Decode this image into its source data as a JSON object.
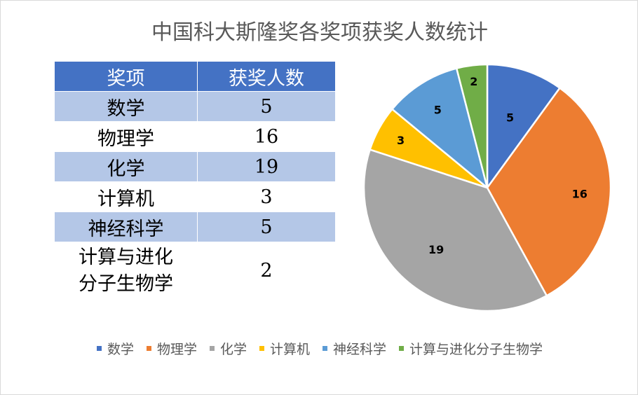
{
  "title": "中国科大斯隆奖各奖项获奖人数统计",
  "table": {
    "headers": [
      "奖项",
      "获奖人数"
    ],
    "rows": [
      {
        "name": "数学",
        "count": "5"
      },
      {
        "name": "物理学",
        "count": "16"
      },
      {
        "name": "化学",
        "count": "19"
      },
      {
        "name": "计算机",
        "count": "3"
      },
      {
        "name": "神经科学",
        "count": "5"
      },
      {
        "name_line1": "计算与进化",
        "name_line2": "分子生物学",
        "count": "2"
      }
    ]
  },
  "chart_data": {
    "type": "pie",
    "title": "中国科大斯隆奖各奖项获奖人数统计",
    "categories": [
      "数学",
      "物理学",
      "化学",
      "计算机",
      "神经科学",
      "计算与进化分子生物学"
    ],
    "values": [
      5,
      16,
      19,
      3,
      5,
      2
    ],
    "colors": [
      "#4472c4",
      "#ed7d31",
      "#a5a5a5",
      "#ffc000",
      "#5b9bd5",
      "#70ad47"
    ],
    "data_labels": true,
    "legend_position": "bottom"
  }
}
